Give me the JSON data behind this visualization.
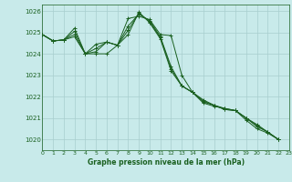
{
  "title": "Graphe pression niveau de la mer (hPa)",
  "xlabel": "Graphe pression niveau de la mer (hPa)",
  "xlim": [
    0,
    23
  ],
  "ylim": [
    1019.5,
    1026.3
  ],
  "yticks": [
    1020,
    1021,
    1022,
    1023,
    1024,
    1025,
    1026
  ],
  "xticks": [
    0,
    1,
    2,
    3,
    4,
    5,
    6,
    7,
    8,
    9,
    10,
    11,
    12,
    13,
    14,
    15,
    16,
    17,
    18,
    19,
    20,
    21,
    22,
    23
  ],
  "xtick_labels": [
    "0",
    "1",
    "2",
    "3",
    "4",
    "5",
    "6",
    "7",
    "8",
    "9",
    "10",
    "11",
    "12",
    "13",
    "14",
    "15",
    "16",
    "17",
    "18",
    "19",
    "20",
    "21",
    "22",
    "23"
  ],
  "background_color": "#c8eaea",
  "grid_color": "#a8cece",
  "line_color": "#1a6020",
  "series": [
    [
      1024.9,
      1024.6,
      1024.65,
      1024.8,
      1024.0,
      1024.0,
      1024.0,
      1024.4,
      1025.65,
      1025.75,
      1025.6,
      1024.9,
      1024.85,
      1023.0,
      1022.2,
      1021.7,
      1021.55,
      1021.45,
      1021.35,
      1020.9,
      1020.5,
      1020.3,
      1020.0
    ],
    [
      1024.9,
      1024.6,
      1024.65,
      1024.9,
      1024.0,
      1024.1,
      1024.55,
      1024.4,
      1025.3,
      1025.85,
      1025.55,
      1024.8,
      1023.4,
      1022.5,
      1022.2,
      1021.85,
      1021.6,
      1021.45,
      1021.35,
      1021.0,
      1020.7,
      1020.35,
      1020.0
    ],
    [
      1024.9,
      1024.6,
      1024.65,
      1025.05,
      1024.0,
      1024.25,
      1024.55,
      1024.4,
      1025.1,
      1025.9,
      1025.5,
      1024.75,
      1023.3,
      1022.5,
      1022.2,
      1021.8,
      1021.6,
      1021.4,
      1021.35,
      1021.0,
      1020.65,
      1020.35,
      1020.0
    ],
    [
      1024.9,
      1024.6,
      1024.65,
      1025.2,
      1024.0,
      1024.45,
      1024.55,
      1024.4,
      1024.9,
      1025.95,
      1025.45,
      1024.7,
      1023.2,
      1022.5,
      1022.2,
      1021.75,
      1021.6,
      1021.4,
      1021.35,
      1021.0,
      1020.6,
      1020.35,
      1020.0
    ]
  ],
  "x_values": [
    0,
    1,
    2,
    3,
    4,
    5,
    6,
    7,
    8,
    9,
    10,
    11,
    12,
    13,
    14,
    15,
    16,
    17,
    18,
    19,
    20,
    21,
    22
  ]
}
